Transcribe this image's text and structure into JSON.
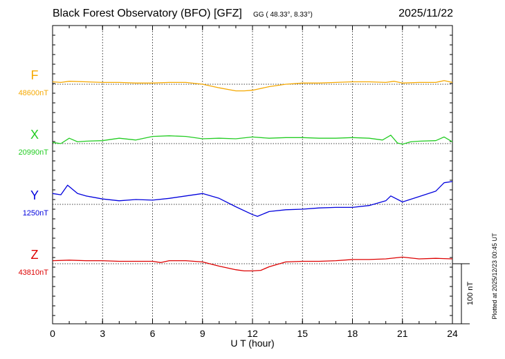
{
  "header": {
    "title": "Black Forest Observatory (BFO)  [GFZ]",
    "coords": "GG ( 48.33°,   8.33°)",
    "date": "2025/11/22"
  },
  "footer_note": "Plotted at 2025/12/23 00:45 UT",
  "chart_data": {
    "type": "line",
    "xlabel": "U T (hour)",
    "xlim": [
      0,
      24
    ],
    "x_ticks": [
      0,
      3,
      6,
      9,
      12,
      15,
      18,
      21,
      24
    ],
    "x_tick_labels": [
      "0",
      "3",
      "6",
      "9",
      "12",
      "15",
      "18",
      "21",
      "24"
    ],
    "scale_bar": "100 nT",
    "series": [
      {
        "name": "F",
        "baseline_label": "48600nT",
        "color": "#f5a800",
        "x": [
          0,
          0.5,
          1,
          2,
          3,
          4,
          5,
          6,
          7,
          8,
          9,
          10,
          11,
          11.5,
          12,
          13,
          14,
          15,
          16,
          17,
          18,
          19,
          20,
          20.5,
          21,
          22,
          23,
          23.5,
          24
        ],
        "y": [
          4,
          3,
          5,
          4,
          3,
          3,
          2,
          2,
          3,
          3,
          0,
          -6,
          -11,
          -11,
          -10,
          -4,
          0,
          2,
          2,
          3,
          4,
          4,
          3,
          5,
          2,
          3,
          3,
          6,
          3
        ]
      },
      {
        "name": "X",
        "baseline_label": "20990nT",
        "color": "#22cc22",
        "x": [
          0,
          0.5,
          1,
          1.5,
          2,
          3,
          4,
          5,
          6,
          7,
          8,
          9,
          10,
          11,
          12,
          13,
          14,
          15,
          16,
          17,
          18,
          19,
          19.8,
          20.3,
          20.7,
          21,
          21.5,
          22,
          23,
          23.5,
          24
        ],
        "y": [
          2,
          0,
          9,
          3,
          4,
          5,
          9,
          6,
          12,
          13,
          12,
          8,
          9,
          8,
          11,
          9,
          10,
          10,
          9,
          9,
          10,
          9,
          6,
          14,
          1,
          -1,
          3,
          4,
          5,
          11,
          3
        ]
      },
      {
        "name": "Y",
        "baseline_label": "1250nT",
        "color": "#0000dd",
        "x": [
          0,
          0.5,
          0.9,
          1.5,
          2,
          3,
          4,
          5,
          6,
          7,
          8,
          9,
          10,
          11,
          12,
          12.3,
          13,
          14,
          15,
          16,
          17,
          18,
          19,
          20,
          20.3,
          21,
          22,
          23,
          23.5,
          24
        ],
        "y": [
          18,
          16,
          32,
          18,
          14,
          9,
          6,
          8,
          7,
          10,
          14,
          18,
          10,
          -4,
          -17,
          -20,
          -12,
          -9,
          -8,
          -6,
          -5,
          -5,
          -2,
          6,
          14,
          4,
          13,
          22,
          36,
          38
        ]
      },
      {
        "name": "Z",
        "baseline_label": "43810nT",
        "color": "#dd0000",
        "x": [
          0,
          1,
          2,
          3,
          4,
          5,
          6,
          6.5,
          7,
          8,
          9,
          10,
          11,
          11.5,
          12,
          12.5,
          13,
          14,
          15,
          16,
          17,
          18,
          19,
          20,
          21,
          22,
          23,
          24
        ],
        "y": [
          5,
          6,
          5,
          5,
          4,
          4,
          4,
          2,
          5,
          5,
          3,
          -4,
          -10,
          -12,
          -12,
          -11,
          -5,
          3,
          4,
          4,
          5,
          7,
          7,
          8,
          11,
          8,
          9,
          8
        ]
      }
    ]
  }
}
